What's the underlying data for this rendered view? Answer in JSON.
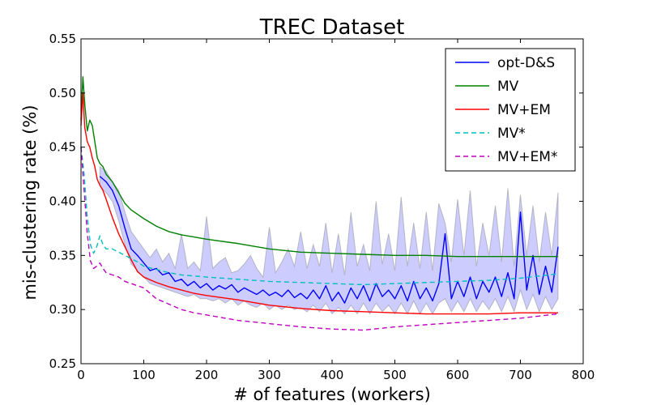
{
  "chart_data": {
    "type": "line",
    "title": "TREC Dataset",
    "xlabel": "# of features (workers)",
    "ylabel": "mis-clustering rate (%)",
    "xlim": [
      0,
      800
    ],
    "ylim": [
      0.25,
      0.55
    ],
    "xticks": [
      0,
      100,
      200,
      300,
      400,
      500,
      600,
      700,
      800
    ],
    "yticks": [
      0.25,
      0.3,
      0.35,
      0.4,
      0.45,
      0.5,
      0.55
    ],
    "xtick_labels": [
      "0",
      "100",
      "200",
      "300",
      "400",
      "500",
      "600",
      "700",
      "800"
    ],
    "ytick_labels": [
      "0.25",
      "0.30",
      "0.35",
      "0.40",
      "0.45",
      "0.50",
      "0.55"
    ],
    "grid": false,
    "legend_position": "top-right",
    "series": [
      {
        "name": "opt-D&S",
        "color": "#0000ff",
        "style": "solid",
        "x": [
          30,
          40,
          50,
          60,
          70,
          80,
          90,
          100,
          110,
          120,
          130,
          140,
          150,
          160,
          170,
          180,
          190,
          200,
          210,
          220,
          230,
          240,
          250,
          260,
          270,
          280,
          290,
          300,
          310,
          320,
          330,
          340,
          350,
          360,
          370,
          380,
          390,
          400,
          410,
          420,
          430,
          440,
          450,
          460,
          470,
          480,
          490,
          500,
          510,
          520,
          530,
          540,
          550,
          560,
          570,
          580,
          590,
          600,
          610,
          620,
          630,
          640,
          650,
          660,
          670,
          680,
          690,
          700,
          710,
          720,
          730,
          740,
          750,
          760
        ],
        "y": [
          0.423,
          0.418,
          0.41,
          0.396,
          0.375,
          0.356,
          0.35,
          0.343,
          0.336,
          0.338,
          0.332,
          0.334,
          0.326,
          0.328,
          0.322,
          0.326,
          0.32,
          0.324,
          0.318,
          0.322,
          0.319,
          0.323,
          0.316,
          0.32,
          0.317,
          0.314,
          0.318,
          0.313,
          0.316,
          0.312,
          0.318,
          0.311,
          0.315,
          0.31,
          0.318,
          0.31,
          0.322,
          0.308,
          0.316,
          0.306,
          0.32,
          0.31,
          0.322,
          0.308,
          0.324,
          0.312,
          0.318,
          0.31,
          0.322,
          0.308,
          0.326,
          0.31,
          0.32,
          0.308,
          0.324,
          0.37,
          0.31,
          0.326,
          0.312,
          0.33,
          0.31,
          0.326,
          0.316,
          0.33,
          0.312,
          0.334,
          0.31,
          0.39,
          0.318,
          0.35,
          0.314,
          0.34,
          0.316,
          0.358
        ],
        "band_upper": [
          0.432,
          0.428,
          0.418,
          0.41,
          0.39,
          0.372,
          0.364,
          0.356,
          0.348,
          0.356,
          0.344,
          0.352,
          0.338,
          0.37,
          0.338,
          0.344,
          0.336,
          0.386,
          0.338,
          0.344,
          0.348,
          0.334,
          0.336,
          0.342,
          0.35,
          0.338,
          0.33,
          0.376,
          0.334,
          0.344,
          0.356,
          0.34,
          0.372,
          0.338,
          0.36,
          0.34,
          0.38,
          0.334,
          0.37,
          0.332,
          0.39,
          0.34,
          0.36,
          0.336,
          0.4,
          0.342,
          0.37,
          0.336,
          0.404,
          0.34,
          0.38,
          0.338,
          0.39,
          0.336,
          0.398,
          0.38,
          0.344,
          0.402,
          0.35,
          0.41,
          0.34,
          0.38,
          0.35,
          0.396,
          0.344,
          0.412,
          0.34,
          0.406,
          0.35,
          0.396,
          0.344,
          0.39,
          0.35,
          0.408
        ],
        "band_lower": [
          0.414,
          0.408,
          0.4,
          0.382,
          0.36,
          0.342,
          0.336,
          0.33,
          0.324,
          0.322,
          0.32,
          0.318,
          0.316,
          0.314,
          0.312,
          0.314,
          0.31,
          0.31,
          0.308,
          0.31,
          0.306,
          0.31,
          0.304,
          0.308,
          0.304,
          0.302,
          0.306,
          0.3,
          0.304,
          0.3,
          0.304,
          0.3,
          0.302,
          0.298,
          0.304,
          0.298,
          0.306,
          0.296,
          0.302,
          0.296,
          0.304,
          0.296,
          0.306,
          0.296,
          0.306,
          0.298,
          0.304,
          0.296,
          0.306,
          0.296,
          0.308,
          0.296,
          0.306,
          0.296,
          0.306,
          0.31,
          0.298,
          0.308,
          0.298,
          0.31,
          0.298,
          0.308,
          0.3,
          0.31,
          0.298,
          0.312,
          0.298,
          0.318,
          0.3,
          0.314,
          0.298,
          0.312,
          0.3,
          0.31
        ]
      },
      {
        "name": "MV",
        "color": "#008000",
        "style": "solid",
        "x": [
          0,
          3,
          6,
          10,
          14,
          18,
          22,
          26,
          30,
          35,
          40,
          50,
          60,
          70,
          80,
          90,
          100,
          120,
          140,
          160,
          180,
          200,
          250,
          300,
          350,
          400,
          450,
          500,
          550,
          600,
          650,
          700,
          760
        ],
        "y": [
          0.475,
          0.515,
          0.49,
          0.465,
          0.475,
          0.47,
          0.455,
          0.44,
          0.435,
          0.432,
          0.425,
          0.418,
          0.408,
          0.398,
          0.392,
          0.388,
          0.384,
          0.377,
          0.372,
          0.369,
          0.367,
          0.365,
          0.361,
          0.356,
          0.353,
          0.352,
          0.351,
          0.35,
          0.35,
          0.349,
          0.349,
          0.349,
          0.349
        ]
      },
      {
        "name": "MV+EM",
        "color": "#ff0000",
        "style": "solid",
        "x": [
          0,
          3,
          6,
          10,
          14,
          18,
          22,
          26,
          30,
          35,
          40,
          50,
          60,
          70,
          80,
          90,
          100,
          120,
          140,
          160,
          180,
          200,
          250,
          300,
          350,
          400,
          450,
          500,
          550,
          600,
          650,
          700,
          760
        ],
        "y": [
          0.47,
          0.5,
          0.468,
          0.455,
          0.45,
          0.44,
          0.432,
          0.42,
          0.415,
          0.41,
          0.402,
          0.385,
          0.37,
          0.358,
          0.346,
          0.335,
          0.33,
          0.325,
          0.321,
          0.318,
          0.315,
          0.313,
          0.309,
          0.304,
          0.301,
          0.299,
          0.298,
          0.297,
          0.296,
          0.296,
          0.296,
          0.297,
          0.297
        ]
      },
      {
        "name": "MV*",
        "color": "#00bfbf",
        "style": "dashed",
        "x": [
          0,
          5,
          10,
          15,
          20,
          25,
          30,
          35,
          40,
          50,
          60,
          70,
          80,
          90,
          100,
          120,
          140,
          160,
          180,
          200,
          250,
          300,
          350,
          400,
          450,
          500,
          550,
          600,
          650,
          700,
          760
        ],
        "y": [
          0.45,
          0.425,
          0.385,
          0.36,
          0.352,
          0.358,
          0.368,
          0.36,
          0.356,
          0.356,
          0.353,
          0.35,
          0.347,
          0.344,
          0.34,
          0.337,
          0.334,
          0.332,
          0.331,
          0.33,
          0.328,
          0.326,
          0.325,
          0.324,
          0.323,
          0.324,
          0.325,
          0.326,
          0.327,
          0.329,
          0.333
        ]
      },
      {
        "name": "MV+EM*",
        "color": "#bf00bf",
        "style": "dashed",
        "x": [
          0,
          5,
          10,
          15,
          20,
          25,
          30,
          35,
          40,
          50,
          60,
          70,
          80,
          90,
          100,
          120,
          140,
          160,
          180,
          200,
          250,
          300,
          350,
          400,
          450,
          500,
          550,
          600,
          650,
          700,
          760
        ],
        "y": [
          0.45,
          0.41,
          0.37,
          0.345,
          0.338,
          0.34,
          0.343,
          0.338,
          0.334,
          0.332,
          0.33,
          0.326,
          0.324,
          0.322,
          0.32,
          0.31,
          0.305,
          0.3,
          0.297,
          0.295,
          0.29,
          0.287,
          0.284,
          0.282,
          0.281,
          0.284,
          0.286,
          0.288,
          0.29,
          0.292,
          0.296
        ]
      }
    ]
  }
}
